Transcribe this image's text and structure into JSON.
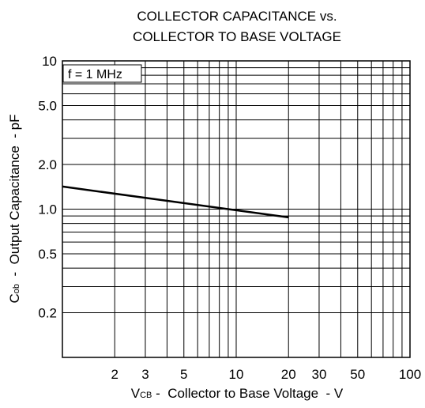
{
  "chart_data": {
    "type": "line",
    "title_lines": [
      "COLLECTOR CAPACITANCE vs.",
      "COLLECTOR TO BASE VOLTAGE"
    ],
    "xlabel": {
      "main": "V",
      "sub": "CB",
      "rest": " -  Collector to Base Voltage  - V"
    },
    "ylabel": {
      "main": "C",
      "sub": "ob",
      "rest": "  -  Output Capacitance  - pF"
    },
    "annotation": "f = 1 MHz",
    "x_scale": "log",
    "y_scale": "log",
    "xlim": [
      1,
      100
    ],
    "ylim": [
      0.1,
      10
    ],
    "x_ticks": [
      {
        "value": 2,
        "label": "2"
      },
      {
        "value": 3,
        "label": "3"
      },
      {
        "value": 5,
        "label": "5"
      },
      {
        "value": 10,
        "label": "10"
      },
      {
        "value": 20,
        "label": "20"
      },
      {
        "value": 30,
        "label": "30"
      },
      {
        "value": 50,
        "label": "50"
      },
      {
        "value": 100,
        "label": "100"
      }
    ],
    "y_ticks": [
      {
        "value": 0.2,
        "label": "0.2"
      },
      {
        "value": 0.5,
        "label": "0.5"
      },
      {
        "value": 1,
        "label": "1.0"
      },
      {
        "value": 2,
        "label": "2.0"
      },
      {
        "value": 5,
        "label": "5.0"
      },
      {
        "value": 10,
        "label": "10"
      }
    ],
    "grid": true,
    "series": [
      {
        "x": [
          1,
          20
        ],
        "y": [
          1.42,
          0.88
        ],
        "color": "#000000"
      }
    ]
  }
}
